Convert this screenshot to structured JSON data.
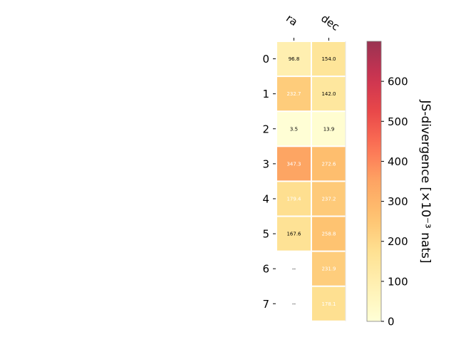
{
  "chart_data": {
    "type": "heatmap",
    "columns": [
      "ra",
      "dec"
    ],
    "rows": [
      "0",
      "1",
      "2",
      "3",
      "4",
      "5",
      "6",
      "7"
    ],
    "values": [
      [
        96.8,
        154.0
      ],
      [
        232.7,
        142.0
      ],
      [
        3.5,
        13.9
      ],
      [
        347.3,
        272.6
      ],
      [
        179.4,
        237.2
      ],
      [
        167.6,
        258.8
      ],
      [
        null,
        231.9
      ],
      [
        null,
        178.1
      ]
    ],
    "cell_labels": [
      [
        "96.8",
        "154.0"
      ],
      [
        "232.7",
        "142.0"
      ],
      [
        "3.5",
        "13.9"
      ],
      [
        "347.3",
        "272.6"
      ],
      [
        "179.4",
        "237.2"
      ],
      [
        "167.6",
        "258.8"
      ],
      [
        "--",
        "231.9"
      ],
      [
        "--",
        "178.1"
      ]
    ],
    "cell_label_colors": [
      [
        "#000000",
        "#000000"
      ],
      [
        "#ffffff",
        "#000000"
      ],
      [
        "#000000",
        "#000000"
      ],
      [
        "#ffffff",
        "#ffffff"
      ],
      [
        "#ffffff",
        "#ffffff"
      ],
      [
        "#000000",
        "#ffffff"
      ],
      [
        "#000000",
        "#ffffff"
      ],
      [
        "#000000",
        "#ffffff"
      ]
    ],
    "colorbar": {
      "label": "JS-divergence [×10⁻³ nats]",
      "range": [
        0,
        700
      ],
      "ticks": [
        "0",
        "100",
        "200",
        "300",
        "400",
        "500",
        "600"
      ],
      "colormap": "YlOrRd"
    },
    "grid": false
  }
}
